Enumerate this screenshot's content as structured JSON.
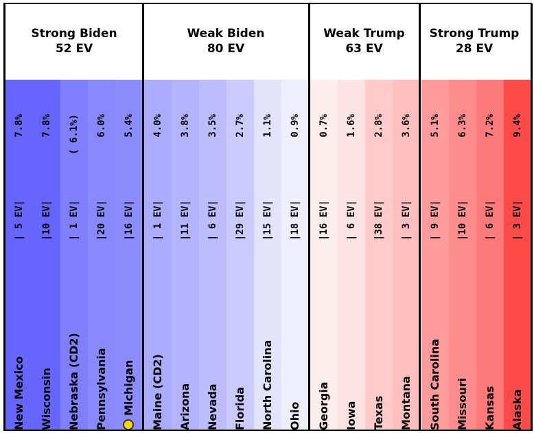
{
  "chart_data": {
    "type": "table",
    "groups": [
      {
        "title": "Strong Biden",
        "ev_label": "52 EV",
        "state_indices": [
          0,
          1,
          2,
          3,
          4
        ]
      },
      {
        "title": "Weak Biden",
        "ev_label": "80 EV",
        "state_indices": [
          5,
          6,
          7,
          8,
          9,
          10
        ]
      },
      {
        "title": "Weak Trump",
        "ev_label": "63 EV",
        "state_indices": [
          11,
          12,
          13,
          14
        ]
      },
      {
        "title": "Strong Trump",
        "ev_label": "28 EV",
        "state_indices": [
          15,
          16,
          17,
          18
        ]
      }
    ],
    "states": [
      {
        "name": "New Mexico",
        "ev": "| 5 EV|",
        "margin": "7.8%",
        "color": "#6666ff"
      },
      {
        "name": "Wisconsin",
        "ev": "|10 EV|",
        "margin": "7.8%",
        "color": "#6666ff"
      },
      {
        "name": "Nebraska (CD2)",
        "ev": "| 1 EV|",
        "margin": "( 6.1%)",
        "color": "#8080ff"
      },
      {
        "name": "Pennsylvania",
        "ev": "|20 EV|",
        "margin": "6.0%",
        "color": "#8888ff"
      },
      {
        "name": "Michigan",
        "ev": "|16 EV|",
        "margin": "5.4%",
        "color": "#8c8cff",
        "marker": "tipping-point"
      },
      {
        "name": "Maine (CD2)",
        "ev": "| 1 EV|",
        "margin": "4.0%",
        "color": "#ababff"
      },
      {
        "name": "Arizona",
        "ev": "|11 EV|",
        "margin": "3.8%",
        "color": "#b3b3ff"
      },
      {
        "name": "Nevada",
        "ev": "| 6 EV|",
        "margin": "3.5%",
        "color": "#bcbcff"
      },
      {
        "name": "Florida",
        "ev": "|29 EV|",
        "margin": "2.7%",
        "color": "#cacaff"
      },
      {
        "name": "North Carolina",
        "ev": "|15 EV|",
        "margin": "1.1%",
        "color": "#e3e3fc"
      },
      {
        "name": "Ohio",
        "ev": "|18 EV|",
        "margin": "0.9%",
        "color": "#eeeefe"
      },
      {
        "name": "Georgia",
        "ev": "|16 EV|",
        "margin": "0.7%",
        "color": "#fdeeee"
      },
      {
        "name": "Iowa",
        "ev": "| 6 EV|",
        "margin": "1.6%",
        "color": "#fde3e3"
      },
      {
        "name": "Texas",
        "ev": "|38 EV|",
        "margin": "2.8%",
        "color": "#ffcaca"
      },
      {
        "name": "Montana",
        "ev": "| 3 EV|",
        "margin": "3.6%",
        "color": "#ffbfbf"
      },
      {
        "name": "South Carolina",
        "ev": "| 9 EV|",
        "margin": "5.1%",
        "color": "#ff9b9b"
      },
      {
        "name": "Missouri",
        "ev": "|10 EV|",
        "margin": "6.3%",
        "color": "#ff8c8c"
      },
      {
        "name": "Kansas",
        "ev": "| 6 EV|",
        "margin": "7.2%",
        "color": "#ff7a7a"
      },
      {
        "name": "Alaska",
        "ev": "| 3 EV|",
        "margin": "9.4%",
        "color": "#ff4a4a"
      }
    ]
  }
}
